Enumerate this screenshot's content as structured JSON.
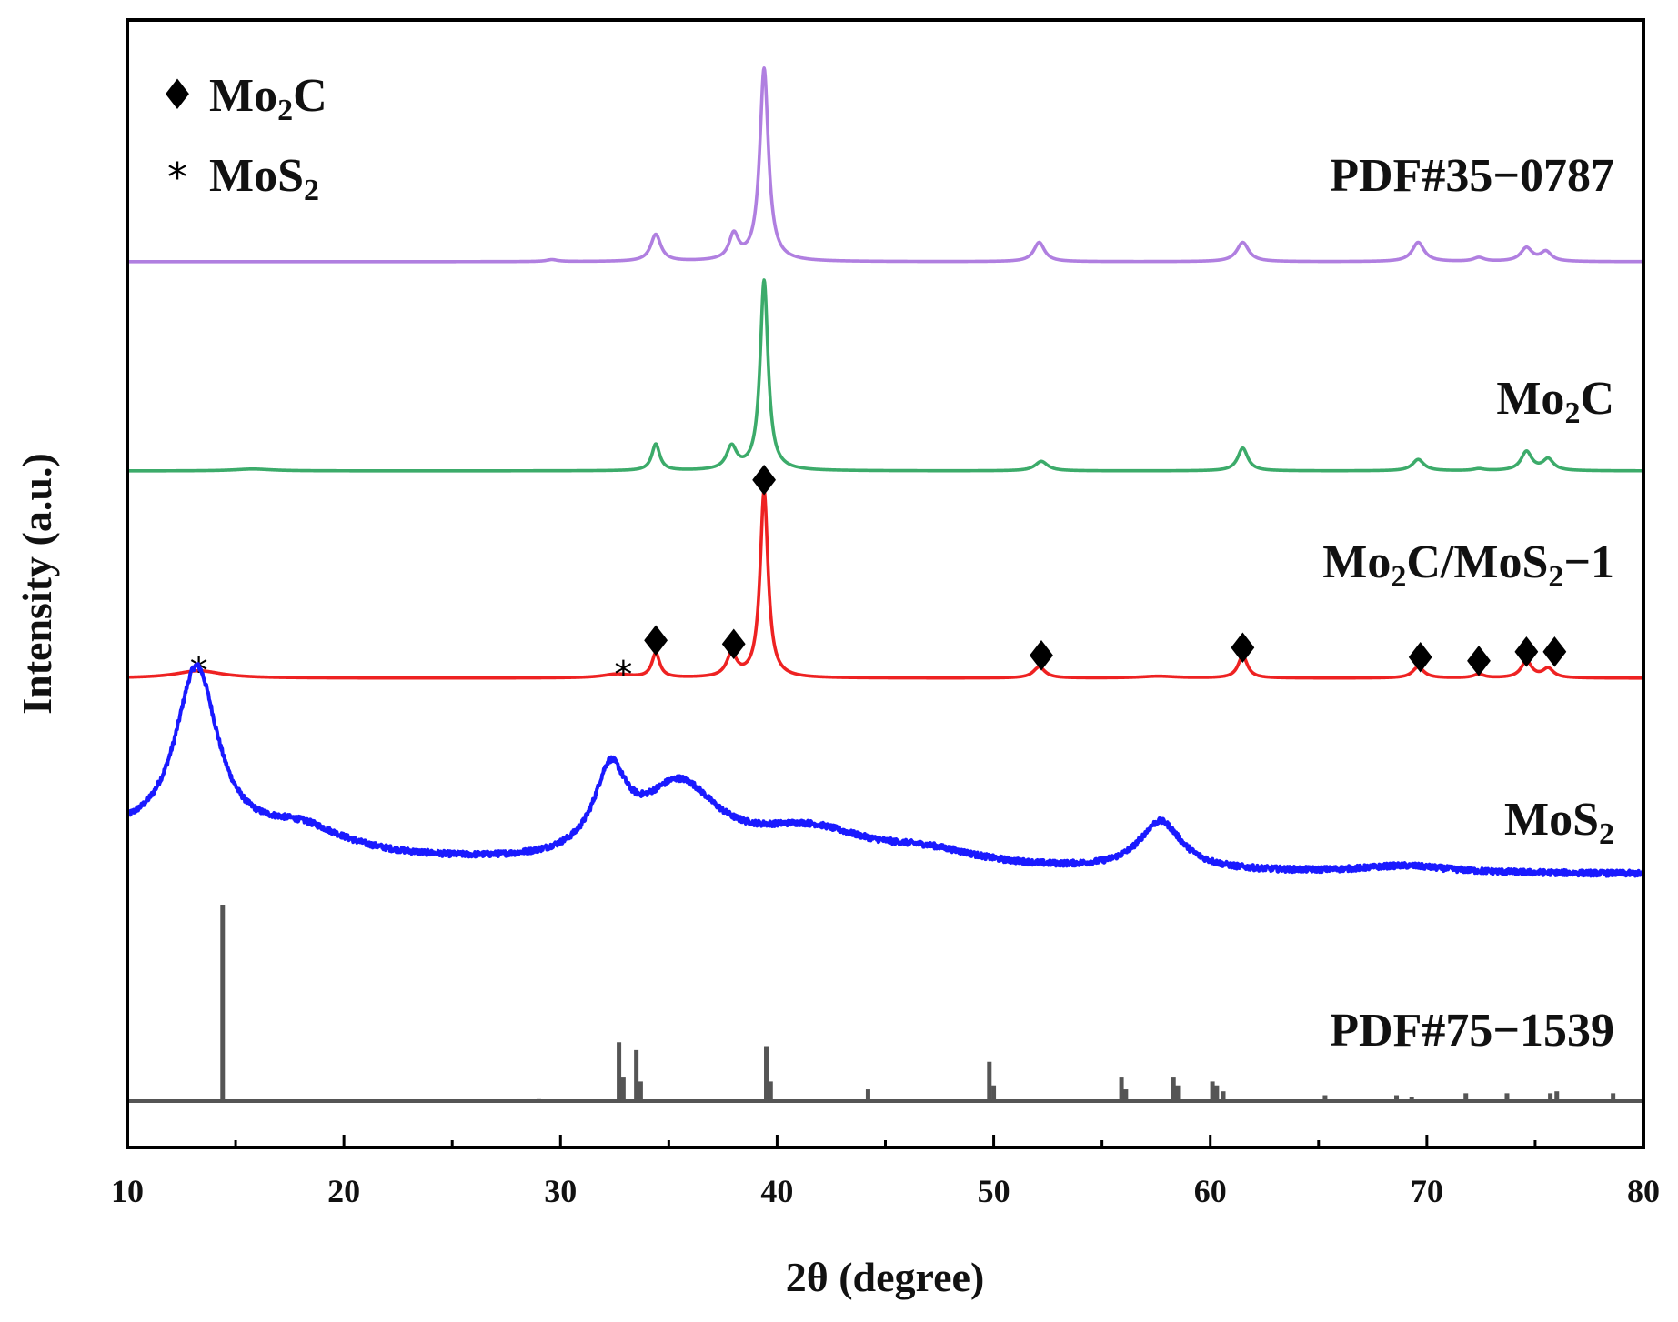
{
  "chart_data": {
    "type": "line",
    "title": "",
    "xlabel": "2θ (degree)",
    "ylabel": "Intensity (a.u.)",
    "xlim": [
      10,
      80
    ],
    "xticks": [
      10,
      20,
      30,
      40,
      50,
      60,
      70,
      80
    ],
    "xtick_labels": [
      "10",
      "20",
      "30",
      "40",
      "50",
      "60",
      "70",
      "80"
    ],
    "y_units": "relative intensity (each pattern 0–100, stacked with vertical offsets)",
    "legend": {
      "placement": "top-left",
      "entries": [
        {
          "symbol": "♦",
          "text": "Mo",
          "sub": "2",
          "after": "C",
          "name": "mo2c"
        },
        {
          "symbol": "*",
          "text": "MoS",
          "sub": "2",
          "after": "",
          "name": "mos2"
        }
      ]
    },
    "series": [
      {
        "name": "PDF#35-0787",
        "label_parts": {
          "text": "PDF#35−0787",
          "sub": "",
          "after": ""
        },
        "color": "#b07fe0",
        "style": "profile",
        "baseline": 1,
        "scale": 100,
        "peaks": [
          {
            "x": 29.6,
            "y": 1,
            "w": 0.3
          },
          {
            "x": 34.4,
            "y": 14,
            "w": 0.28
          },
          {
            "x": 38.0,
            "y": 13,
            "w": 0.26
          },
          {
            "x": 39.4,
            "y": 100,
            "w": 0.24
          },
          {
            "x": 52.1,
            "y": 10,
            "w": 0.3
          },
          {
            "x": 61.5,
            "y": 10,
            "w": 0.33
          },
          {
            "x": 69.6,
            "y": 10,
            "w": 0.33
          },
          {
            "x": 72.4,
            "y": 2,
            "w": 0.3
          },
          {
            "x": 74.6,
            "y": 7,
            "w": 0.32
          },
          {
            "x": 75.5,
            "y": 5,
            "w": 0.3
          }
        ]
      },
      {
        "name": "Mo2C",
        "label_parts": {
          "text": "Mo",
          "sub": "2",
          "after": "C"
        },
        "color": "#3cab6a",
        "style": "profile",
        "baseline": 1,
        "scale": 100,
        "peaks": [
          {
            "x": 15.8,
            "y": 1,
            "w": 1.0
          },
          {
            "x": 34.4,
            "y": 14,
            "w": 0.22
          },
          {
            "x": 37.9,
            "y": 12,
            "w": 0.28
          },
          {
            "x": 39.4,
            "y": 100,
            "w": 0.22
          },
          {
            "x": 52.2,
            "y": 5,
            "w": 0.35
          },
          {
            "x": 61.5,
            "y": 12,
            "w": 0.28
          },
          {
            "x": 69.6,
            "y": 6,
            "w": 0.32
          },
          {
            "x": 72.4,
            "y": 1,
            "w": 0.3
          },
          {
            "x": 74.6,
            "y": 10,
            "w": 0.3
          },
          {
            "x": 75.6,
            "y": 6,
            "w": 0.3
          }
        ]
      },
      {
        "name": "Mo2C/MoS2-1",
        "label_parts": {
          "text": "Mo",
          "sub": "2",
          "after": "C/MoS",
          "sub2": "2",
          "after2": "−1"
        },
        "color": "#ee2222",
        "style": "profile",
        "baseline": 1,
        "scale": 100,
        "peaks": [
          {
            "x": 13.3,
            "y": 4,
            "w": 1.3
          },
          {
            "x": 32.6,
            "y": 2,
            "w": 0.8
          },
          {
            "x": 34.4,
            "y": 13,
            "w": 0.22
          },
          {
            "x": 37.9,
            "y": 12,
            "w": 0.28
          },
          {
            "x": 39.4,
            "y": 100,
            "w": 0.22
          },
          {
            "x": 52.1,
            "y": 6,
            "w": 0.33
          },
          {
            "x": 57.6,
            "y": 1,
            "w": 1.0
          },
          {
            "x": 61.5,
            "y": 12,
            "w": 0.26
          },
          {
            "x": 69.6,
            "y": 6,
            "w": 0.32
          },
          {
            "x": 72.4,
            "y": 2,
            "w": 0.3
          },
          {
            "x": 74.6,
            "y": 9,
            "w": 0.3
          },
          {
            "x": 75.6,
            "y": 5,
            "w": 0.3
          }
        ],
        "markers": [
          {
            "x": 13.3,
            "y": 8,
            "symbol": "*"
          },
          {
            "x": 32.9,
            "y": 6,
            "symbol": "*"
          },
          {
            "x": 34.4,
            "y": 20,
            "symbol": "♦"
          },
          {
            "x": 38.0,
            "y": 18,
            "symbol": "♦"
          },
          {
            "x": 39.4,
            "y": 106,
            "symbol": "♦"
          },
          {
            "x": 52.2,
            "y": 12,
            "symbol": "♦"
          },
          {
            "x": 61.5,
            "y": 16,
            "symbol": "♦"
          },
          {
            "x": 69.7,
            "y": 11,
            "symbol": "♦"
          },
          {
            "x": 72.4,
            "y": 9,
            "symbol": "♦"
          },
          {
            "x": 74.6,
            "y": 14,
            "symbol": "♦"
          },
          {
            "x": 75.9,
            "y": 14,
            "symbol": "♦"
          }
        ]
      },
      {
        "name": "MoS2",
        "label_parts": {
          "text": "MoS",
          "sub": "2",
          "after": ""
        },
        "color": "#1a1aff",
        "style": "profile_noisy",
        "baseline": 2,
        "scale": 100,
        "peaks": [
          {
            "x": 13.2,
            "y": 100,
            "w": 1.2
          },
          {
            "x": 18.0,
            "y": 14,
            "w": 2.5
          },
          {
            "x": 32.3,
            "y": 45,
            "w": 0.9
          },
          {
            "x": 35.5,
            "y": 43,
            "w": 2.2
          },
          {
            "x": 41.5,
            "y": 20,
            "w": 3.5
          },
          {
            "x": 47.0,
            "y": 8,
            "w": 3.0
          },
          {
            "x": 57.7,
            "y": 28,
            "w": 1.2
          },
          {
            "x": 69.0,
            "y": 4,
            "w": 2.5
          }
        ],
        "background_decay": {
          "amplitude": 20,
          "x0": 10,
          "scale": 12
        }
      },
      {
        "name": "PDF#75-1539",
        "label_parts": {
          "text": "PDF#75−1539",
          "sub": "",
          "after": ""
        },
        "color": "#555555",
        "style": "sticks",
        "sticks": [
          {
            "x": 14.4,
            "y": 100
          },
          {
            "x": 29.0,
            "y": 1
          },
          {
            "x": 32.7,
            "y": 30
          },
          {
            "x": 32.9,
            "y": 12
          },
          {
            "x": 33.5,
            "y": 26
          },
          {
            "x": 33.7,
            "y": 10
          },
          {
            "x": 39.5,
            "y": 28
          },
          {
            "x": 39.7,
            "y": 10
          },
          {
            "x": 44.2,
            "y": 6
          },
          {
            "x": 49.8,
            "y": 20
          },
          {
            "x": 50.0,
            "y": 8
          },
          {
            "x": 55.9,
            "y": 12
          },
          {
            "x": 56.1,
            "y": 6
          },
          {
            "x": 58.3,
            "y": 12
          },
          {
            "x": 58.5,
            "y": 8
          },
          {
            "x": 60.1,
            "y": 10
          },
          {
            "x": 60.3,
            "y": 8
          },
          {
            "x": 60.6,
            "y": 5
          },
          {
            "x": 65.3,
            "y": 3
          },
          {
            "x": 68.6,
            "y": 3
          },
          {
            "x": 69.3,
            "y": 2
          },
          {
            "x": 71.8,
            "y": 4
          },
          {
            "x": 73.7,
            "y": 4
          },
          {
            "x": 75.7,
            "y": 4
          },
          {
            "x": 76.0,
            "y": 5
          },
          {
            "x": 78.6,
            "y": 4
          }
        ]
      }
    ]
  }
}
